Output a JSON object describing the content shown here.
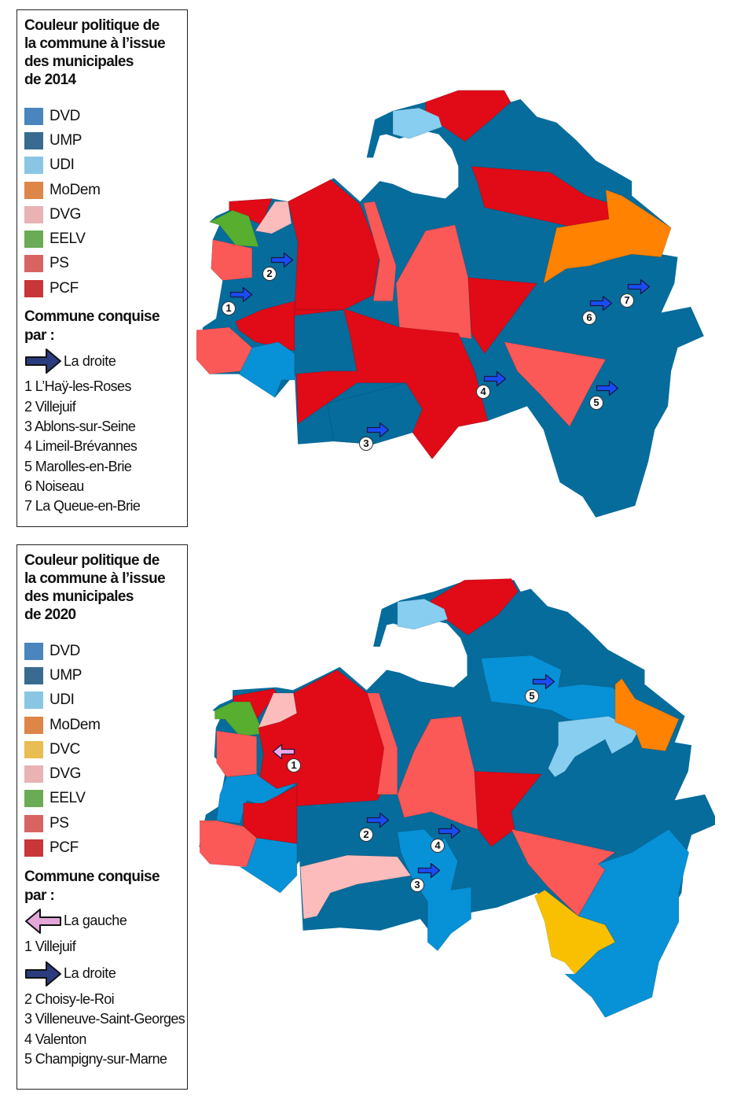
{
  "legend_2014": {
    "title_lines": [
      "Couleur politique de",
      "la commune à l’issue",
      "des municipales",
      "de 2014"
    ],
    "items": [
      {
        "label": "DVD",
        "color": "#4a86bd"
      },
      {
        "label": "UMP",
        "color": "#386b8f"
      },
      {
        "label": "UDI",
        "color": "#8ac6e4"
      },
      {
        "label": "MoDem",
        "color": "#de8548"
      },
      {
        "label": "DVG",
        "color": "#e9b2b3"
      },
      {
        "label": "EELV",
        "color": "#6aac55"
      },
      {
        "label": "PS",
        "color": "#d86461"
      },
      {
        "label": "PCF",
        "color": "#c8363a"
      }
    ],
    "conquest_title_lines": [
      "Commune conquise",
      "par :"
    ],
    "droite_label": "La droite",
    "droite_communes": [
      "1 L’Haÿ-les-Roses",
      "2 Villejuif",
      "3 Ablons-sur-Seine",
      "4 Limeil-Brévannes",
      "5 Marolles-en-Brie",
      "6 Noiseau",
      "7 La Queue-en-Brie"
    ]
  },
  "legend_2020": {
    "title_lines": [
      "Couleur politique de",
      "la commune à l’issue",
      "des municipales",
      "de 2020"
    ],
    "items": [
      {
        "label": "DVD",
        "color": "#4a86bd"
      },
      {
        "label": "UMP",
        "color": "#386b8f"
      },
      {
        "label": "UDI",
        "color": "#8ac6e4"
      },
      {
        "label": "MoDem",
        "color": "#de8548"
      },
      {
        "label": "DVC",
        "color": "#e8bd52"
      },
      {
        "label": "DVG",
        "color": "#e9b2b3"
      },
      {
        "label": "EELV",
        "color": "#6aac55"
      },
      {
        "label": "PS",
        "color": "#d86461"
      },
      {
        "label": "PCF",
        "color": "#c8363a"
      }
    ],
    "conquest_title_lines": [
      "Commune conquise",
      "par :"
    ],
    "gauche_label": "La gauche",
    "gauche_communes": [
      "1 Villejuif"
    ],
    "droite_label": "La droite",
    "droite_communes": [
      "2 Choisy-le-Roi",
      "3 Villeneuve-Saint-Georges",
      "4 Valenton",
      "5 Champigny-sur-Marne"
    ]
  },
  "map_colors": {
    "DVD": "#0791d6",
    "UMP": "#066c9c",
    "UDI": "#87cef0",
    "MoDem": "#ff8200",
    "DVC": "#f8c000",
    "DVG": "#fcbcbc",
    "EELV": "#57ae2f",
    "PS": "#fb5858",
    "PCF": "#e10a17",
    "droite_arrow": "#1a4cf5",
    "gauche_arrow": "#f0a8e8",
    "legend_droite_arrow": "#2b3c7e",
    "legend_gauche_arrow": "#e4a6d8"
  },
  "map_2014": {
    "markers": [
      "1",
      "2",
      "3",
      "4",
      "5",
      "6",
      "7"
    ]
  },
  "map_2020": {
    "markers": [
      "1",
      "2",
      "3",
      "4",
      "5"
    ]
  }
}
